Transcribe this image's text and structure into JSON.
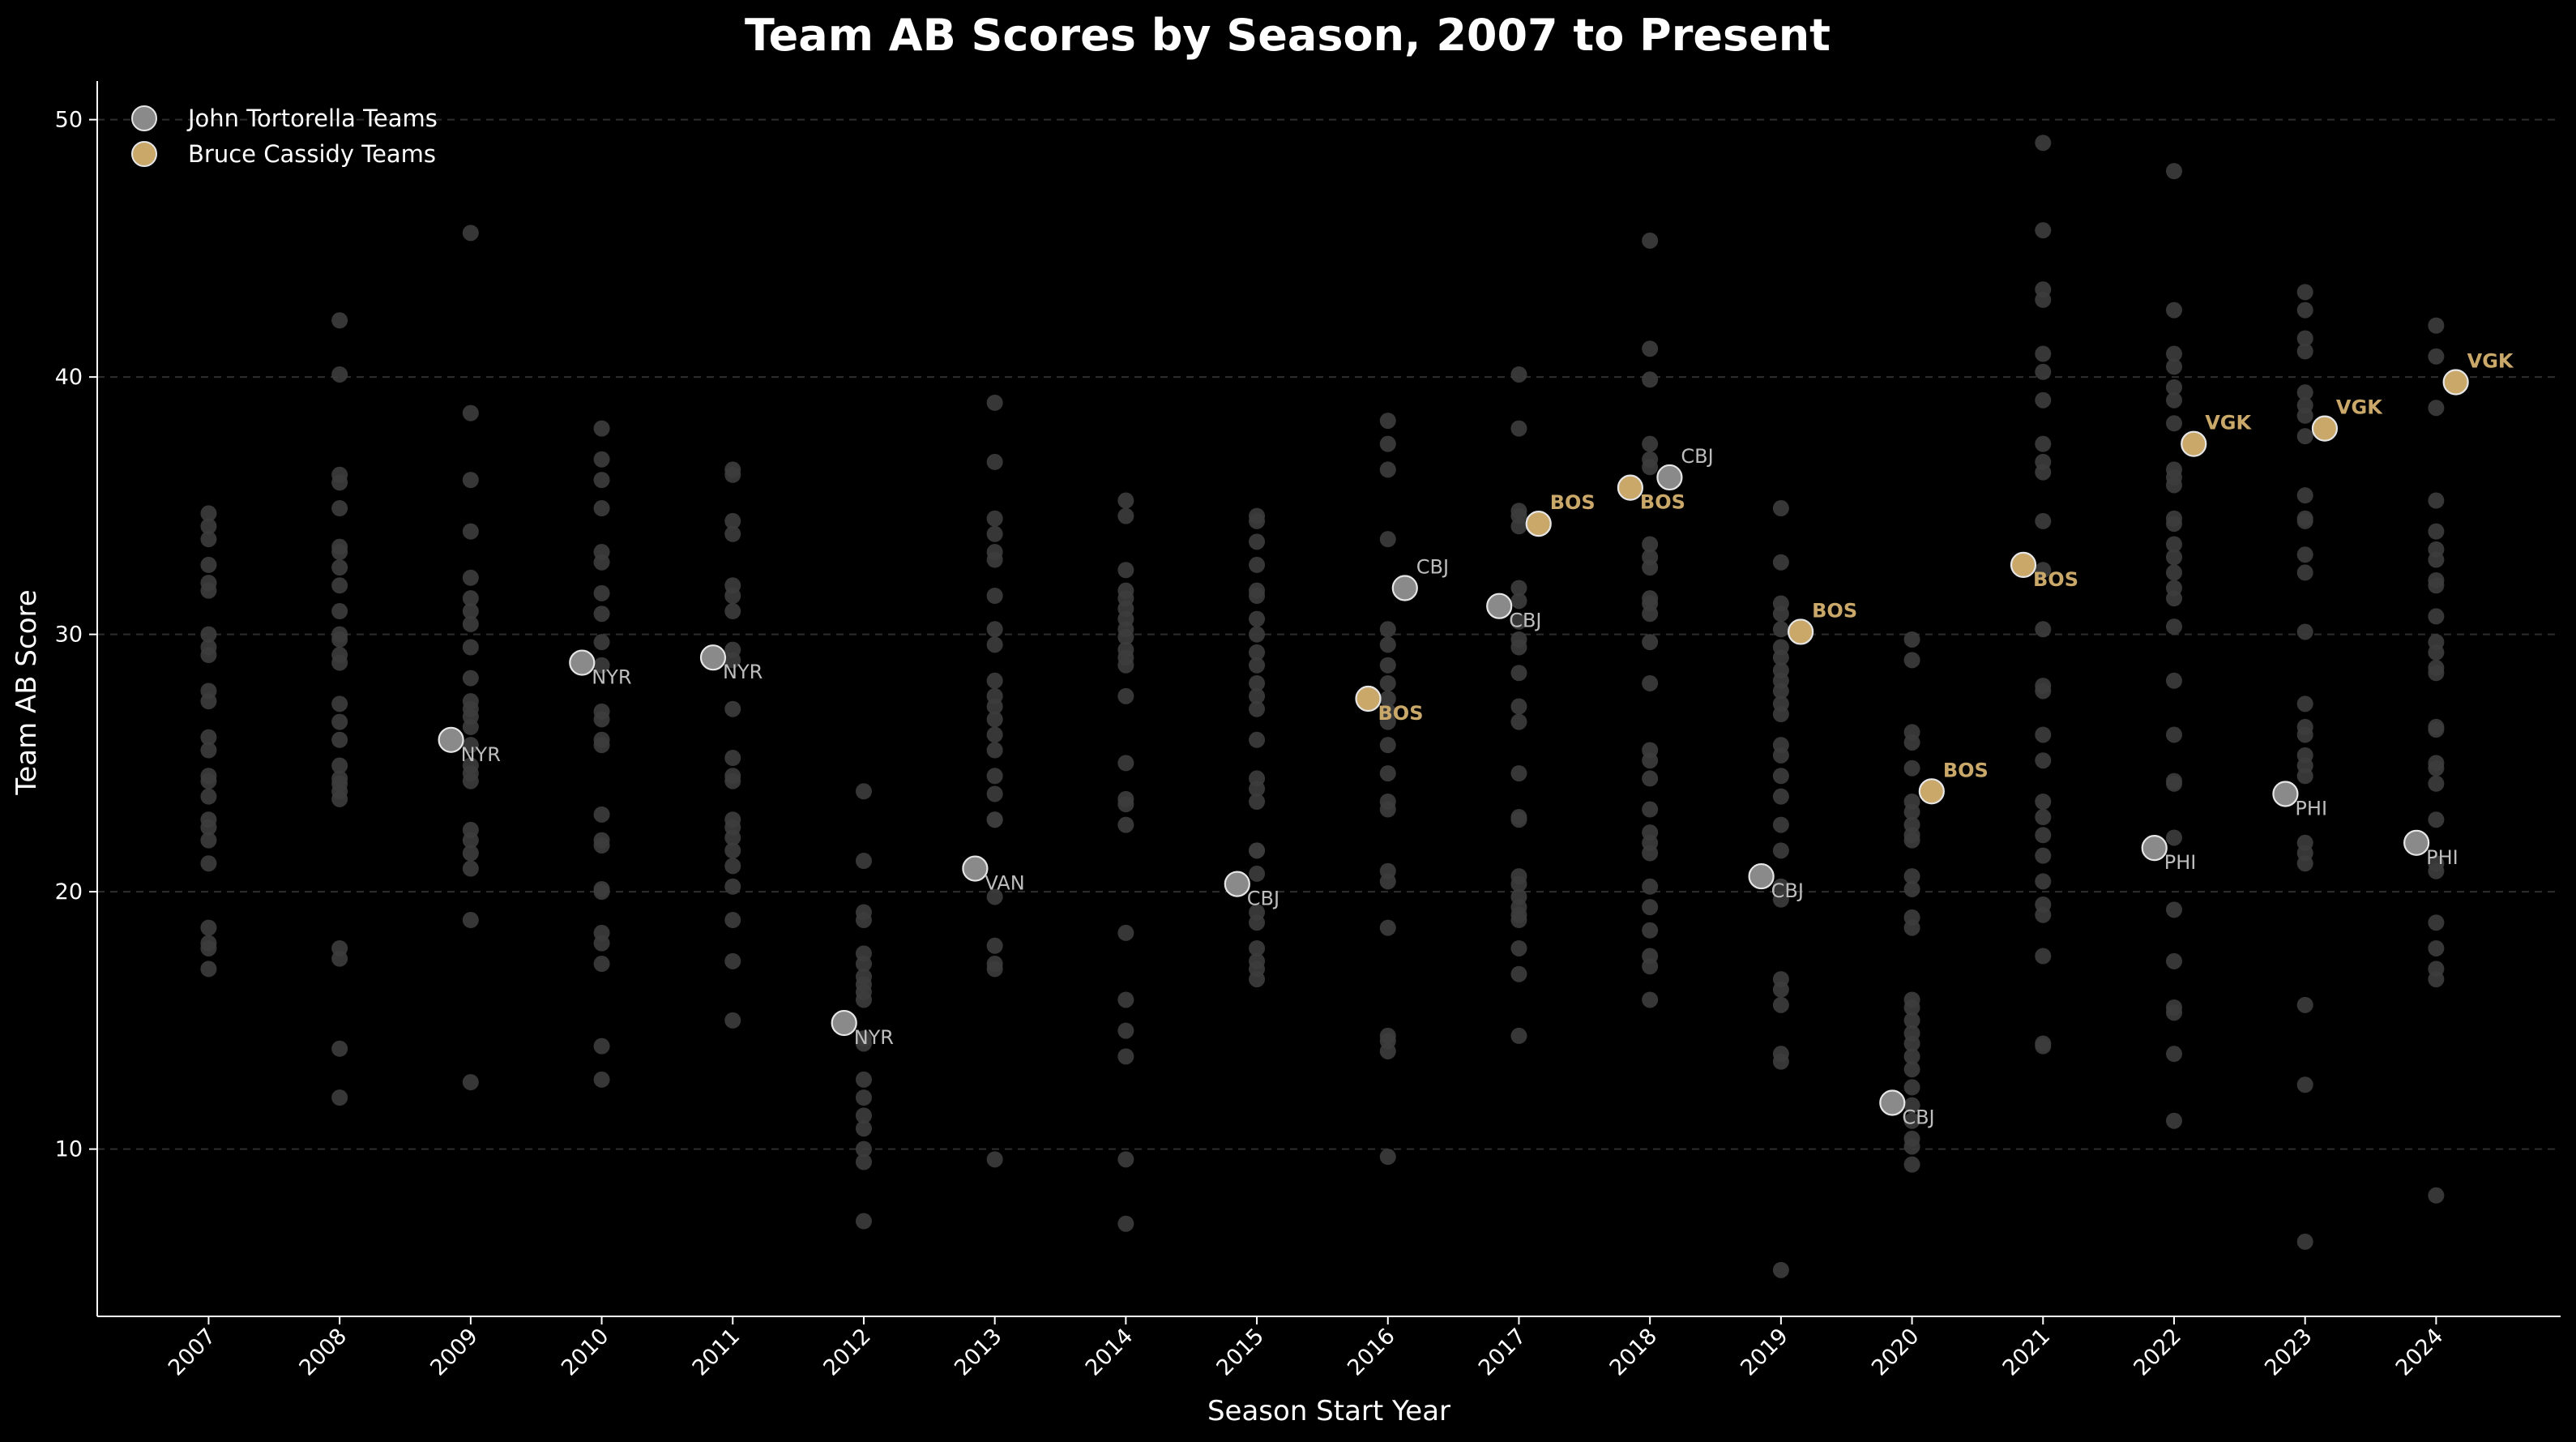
{
  "chart_data": {
    "type": "scatter",
    "title": "Team AB Scores by Season, 2007 to Present",
    "xlabel": "Season Start Year",
    "ylabel": "Team AB Score",
    "x_ticks": [
      "2007",
      "2008",
      "2009",
      "2010",
      "2011",
      "2012",
      "2013",
      "2014",
      "2015",
      "2016",
      "2017",
      "2018",
      "2019",
      "2020",
      "2021",
      "2022",
      "2023",
      "2024"
    ],
    "xlim": [
      2006.15,
      2024.95
    ],
    "ylim": [
      3.5,
      51.5
    ],
    "y_ticks": [
      10,
      20,
      30,
      40,
      50
    ],
    "grid": "y-dashed",
    "legend": "top-left",
    "colors": {
      "background": "#000000",
      "league": "#3d3d3d",
      "tortorella": "#8a8a8a",
      "cassidy": "#c9a86a",
      "label_tortorella": "#bdbdbd",
      "label_cassidy": "#c9a86a"
    },
    "legend_entries": [
      {
        "key": "tortorella",
        "label": "John Tortorella Teams"
      },
      {
        "key": "cassidy",
        "label": "Bruce Cassidy Teams"
      }
    ],
    "league_points": {
      "2007": [
        34.7,
        34.2,
        33.7,
        32.7,
        32.0,
        31.7,
        30.0,
        29.5,
        29.2,
        27.8,
        27.4,
        26.0,
        25.5,
        24.5,
        24.3,
        23.7,
        22.8,
        22.5,
        22.0,
        21.1,
        18.6,
        18.0,
        17.8,
        17.0
      ],
      "2008": [
        42.2,
        40.1,
        36.2,
        35.9,
        34.9,
        33.4,
        33.2,
        32.6,
        31.9,
        30.9,
        30.0,
        29.8,
        29.2,
        28.9,
        27.3,
        26.6,
        25.9,
        24.9,
        24.4,
        24.2,
        23.9,
        23.6,
        17.8,
        17.4,
        13.9,
        12.0
      ],
      "2009": [
        45.6,
        38.6,
        36.0,
        34.0,
        32.2,
        31.4,
        30.9,
        30.4,
        29.5,
        28.3,
        27.4,
        27.1,
        26.8,
        26.4,
        25.7,
        24.9,
        24.6,
        24.3,
        22.4,
        22.0,
        21.5,
        20.9,
        18.9,
        12.6
      ],
      "2010": [
        38.0,
        36.8,
        36.0,
        34.9,
        33.2,
        32.8,
        31.6,
        30.8,
        29.7,
        28.8,
        27.0,
        26.7,
        25.9,
        25.7,
        23.0,
        22.0,
        21.8,
        20.1,
        20.0,
        18.4,
        18.0,
        17.2,
        14.0,
        12.7
      ],
      "2011": [
        36.4,
        36.2,
        34.4,
        33.9,
        31.9,
        31.5,
        30.9,
        29.4,
        29.0,
        27.1,
        25.2,
        24.5,
        24.3,
        22.8,
        22.5,
        22.1,
        21.6,
        21.0,
        20.2,
        18.9,
        17.3,
        15.0
      ],
      "2012": [
        23.9,
        21.2,
        19.2,
        18.9,
        17.6,
        17.2,
        16.7,
        16.4,
        16.1,
        15.8,
        14.3,
        14.1,
        12.7,
        12.0,
        11.3,
        10.8,
        10.0,
        9.5,
        7.2
      ],
      "2013": [
        39.0,
        36.7,
        34.5,
        33.9,
        33.2,
        32.9,
        31.5,
        30.2,
        29.6,
        28.2,
        27.6,
        27.2,
        26.7,
        26.1,
        25.5,
        24.5,
        23.8,
        22.8,
        22.8,
        19.8,
        17.9,
        17.2,
        17.0,
        9.6
      ],
      "2014": [
        35.2,
        34.6,
        32.5,
        31.7,
        31.4,
        31.0,
        30.6,
        30.2,
        29.9,
        29.4,
        29.1,
        28.8,
        27.6,
        25.0,
        23.6,
        23.4,
        22.6,
        18.4,
        15.8,
        14.6,
        13.6,
        9.6,
        7.1
      ],
      "2015": [
        34.6,
        34.4,
        33.6,
        32.7,
        31.7,
        31.5,
        30.6,
        30.0,
        29.3,
        28.8,
        28.1,
        27.6,
        27.1,
        25.9,
        24.4,
        24.0,
        23.5,
        21.6,
        21.6,
        20.7,
        19.2,
        18.8,
        17.8,
        17.3,
        17.0,
        16.6
      ],
      "2016": [
        38.3,
        37.4,
        36.4,
        33.7,
        30.2,
        29.6,
        28.8,
        28.1,
        27.5,
        27.0,
        26.6,
        25.7,
        24.6,
        23.5,
        23.2,
        20.8,
        20.4,
        18.6,
        14.4,
        14.2,
        13.8,
        9.7
      ],
      "2017": [
        40.1,
        38.0,
        34.8,
        34.6,
        34.2,
        31.8,
        31.3,
        30.5,
        29.8,
        29.5,
        28.5,
        27.2,
        26.6,
        24.6,
        22.9,
        22.8,
        20.6,
        20.3,
        19.8,
        19.4,
        19.1,
        18.9,
        17.8,
        16.8,
        14.4
      ],
      "2018": [
        45.3,
        41.1,
        39.9,
        37.4,
        36.8,
        36.5,
        33.5,
        33.0,
        32.6,
        31.4,
        31.2,
        30.8,
        29.7,
        28.1,
        25.5,
        25.1,
        24.4,
        23.2,
        22.3,
        21.9,
        21.5,
        20.2,
        19.4,
        18.5,
        17.5,
        17.1,
        15.8
      ],
      "2019": [
        34.9,
        32.8,
        31.2,
        30.8,
        30.2,
        29.5,
        29.1,
        28.6,
        28.2,
        27.8,
        27.3,
        26.9,
        25.7,
        25.3,
        24.5,
        23.7,
        22.6,
        21.6,
        20.2,
        19.7,
        16.6,
        16.2,
        15.6,
        13.7,
        13.4,
        5.3
      ],
      "2020": [
        29.8,
        29.0,
        26.2,
        25.8,
        24.8,
        23.5,
        23.1,
        22.6,
        22.2,
        22.0,
        20.6,
        20.1,
        19.0,
        18.6,
        15.8,
        15.5,
        15.0,
        14.5,
        14.1,
        13.6,
        13.1,
        12.4,
        11.7,
        11.1,
        10.4,
        10.1,
        9.4
      ],
      "2021": [
        49.1,
        45.7,
        43.4,
        43.0,
        40.9,
        40.2,
        39.1,
        37.4,
        36.7,
        36.3,
        34.4,
        32.5,
        30.2,
        28.0,
        27.8,
        26.1,
        25.1,
        23.5,
        22.9,
        22.2,
        21.4,
        20.4,
        19.5,
        19.1,
        17.5,
        14.1,
        14.0
      ],
      "2022": [
        48.0,
        42.6,
        40.9,
        40.4,
        39.6,
        39.1,
        38.2,
        36.4,
        36.1,
        35.8,
        34.5,
        34.3,
        33.5,
        33.0,
        32.4,
        31.8,
        31.4,
        30.3,
        28.2,
        26.1,
        24.3,
        24.2,
        22.1,
        19.3,
        17.3,
        15.5,
        15.3,
        13.7,
        11.1
      ],
      "2023": [
        43.3,
        42.6,
        41.5,
        41.0,
        39.4,
        38.9,
        38.5,
        37.7,
        35.4,
        34.5,
        34.4,
        33.1,
        32.4,
        30.1,
        27.3,
        26.4,
        26.1,
        25.3,
        24.9,
        24.5,
        21.9,
        21.5,
        21.1,
        15.6,
        12.5,
        6.4
      ],
      "2024": [
        42.0,
        40.8,
        38.8,
        35.2,
        34.0,
        33.3,
        32.9,
        32.1,
        31.9,
        30.7,
        29.7,
        29.3,
        28.7,
        28.5,
        26.4,
        26.3,
        25.0,
        24.8,
        24.2,
        22.8,
        21.1,
        20.8,
        18.8,
        17.8,
        17.0,
        16.6,
        8.2
      ]
    },
    "tortorella_points": [
      {
        "x": 2008.85,
        "y": 25.9,
        "label": "NYR",
        "label_pos": "below-right"
      },
      {
        "x": 2009.85,
        "y": 28.9,
        "label": "NYR",
        "label_pos": "below-right"
      },
      {
        "x": 2010.85,
        "y": 29.1,
        "label": "NYR",
        "label_pos": "below-right"
      },
      {
        "x": 2011.85,
        "y": 14.9,
        "label": "NYR",
        "label_pos": "below-right"
      },
      {
        "x": 2012.85,
        "y": 20.9,
        "label": "VAN",
        "label_pos": "below-right"
      },
      {
        "x": 2014.85,
        "y": 20.3,
        "label": "CBJ",
        "label_pos": "below-right"
      },
      {
        "x": 2016.13,
        "y": 31.8,
        "label": "CBJ",
        "label_pos": "above-right"
      },
      {
        "x": 2016.85,
        "y": 31.1,
        "label": "CBJ",
        "label_pos": "below-right"
      },
      {
        "x": 2018.15,
        "y": 36.1,
        "label": "CBJ",
        "label_pos": "above-right"
      },
      {
        "x": 2018.85,
        "y": 20.6,
        "label": "CBJ",
        "label_pos": "below-right"
      },
      {
        "x": 2019.85,
        "y": 11.8,
        "label": "CBJ",
        "label_pos": "below-right"
      },
      {
        "x": 2021.85,
        "y": 21.7,
        "label": "PHI",
        "label_pos": "below-right"
      },
      {
        "x": 2022.85,
        "y": 23.8,
        "label": "PHI",
        "label_pos": "below-right"
      },
      {
        "x": 2023.85,
        "y": 21.9,
        "label": "PHI",
        "label_pos": "below-right"
      }
    ],
    "cassidy_points": [
      {
        "x": 2015.85,
        "y": 27.5,
        "label": "BOS",
        "label_pos": "below-right"
      },
      {
        "x": 2017.15,
        "y": 34.3,
        "label": "BOS",
        "label_pos": "above-right"
      },
      {
        "x": 2017.85,
        "y": 35.7,
        "label": "BOS",
        "label_pos": "below-right"
      },
      {
        "x": 2019.15,
        "y": 30.1,
        "label": "BOS",
        "label_pos": "above-right"
      },
      {
        "x": 2020.15,
        "y": 23.9,
        "label": "BOS",
        "label_pos": "above-right"
      },
      {
        "x": 2020.85,
        "y": 32.7,
        "label": "BOS",
        "label_pos": "below-right"
      },
      {
        "x": 2022.15,
        "y": 37.4,
        "label": "VGK",
        "label_pos": "above-right"
      },
      {
        "x": 2023.15,
        "y": 38.0,
        "label": "VGK",
        "label_pos": "above-right"
      },
      {
        "x": 2024.15,
        "y": 39.8,
        "label": "VGK",
        "label_pos": "above-right"
      }
    ]
  }
}
